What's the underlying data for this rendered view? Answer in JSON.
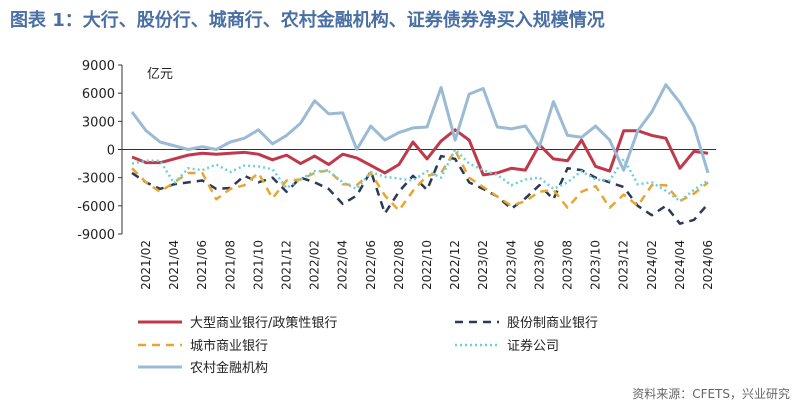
{
  "chart_data": {
    "type": "line",
    "title": "图表 1：大行、股份行、城商行、农村金融机构、证券债券净买入规模情况",
    "y_unit": "亿元",
    "source": "资料来源：CFETS，兴业研究",
    "categories": [
      null,
      "2021/02",
      null,
      "2021/04",
      null,
      "2021/06",
      null,
      "2021/08",
      null,
      "2021/10",
      null,
      "2021/12",
      null,
      "2022/02",
      null,
      "2022/04",
      null,
      "2022/06",
      null,
      "2022/08",
      null,
      "2022/10",
      null,
      "2022/12",
      null,
      "2023/02",
      null,
      "2023/04",
      null,
      "2023/06",
      null,
      "2023/08",
      null,
      "2023/10",
      null,
      "2023/12",
      null,
      "2024/02",
      null,
      "2024/04",
      null,
      "2024/06"
    ],
    "ylim": [
      -9000,
      9000
    ],
    "yticks": [
      9000,
      6000,
      3000,
      0,
      -3000,
      -6000,
      -9000
    ],
    "series": [
      {
        "name": "大型商业银行/政策性银行",
        "color": "#c0394a",
        "line_style": "solid",
        "values": [
          -800,
          -1400,
          -1400,
          -1000,
          -600,
          -400,
          -500,
          -400,
          -300,
          -500,
          -1100,
          -600,
          -1500,
          -700,
          -1600,
          -500,
          -900,
          -1700,
          -2500,
          -1600,
          800,
          -1000,
          900,
          2100,
          1000,
          -2700,
          -2500,
          -2000,
          -2200,
          500,
          -1000,
          -1200,
          1000,
          -1800,
          -2300,
          2000,
          2000,
          1500,
          1200,
          -2000,
          -200,
          -400
        ]
      },
      {
        "name": "股份制商业银行",
        "color": "#2b3a55",
        "line_style": "dashed",
        "values": [
          -2500,
          -3500,
          -4200,
          -3700,
          -3500,
          -3300,
          -4200,
          -4100,
          -2800,
          -3500,
          -3000,
          -4500,
          -3000,
          -3500,
          -4200,
          -5800,
          -4900,
          -2300,
          -6800,
          -4500,
          -2800,
          -4300,
          -700,
          -1000,
          -3500,
          -4200,
          -5000,
          -6300,
          -5200,
          -3800,
          -5300,
          -2000,
          -2200,
          -3000,
          -3500,
          -4000,
          -6000,
          -7000,
          -6000,
          -7900,
          -7500,
          -5800
        ]
      },
      {
        "name": "城市商业银行",
        "color": "#e8a531",
        "line_style": "dashed",
        "values": [
          -2000,
          -3500,
          -4500,
          -3500,
          -2500,
          -2500,
          -5300,
          -4200,
          -3800,
          -2500,
          -5200,
          -3300,
          -3200,
          -2500,
          -2200,
          -3700,
          -3800,
          -2500,
          -4900,
          -6500,
          -4400,
          -2800,
          -2500,
          -100,
          -3000,
          -4000,
          -5000,
          -6000,
          -5500,
          -4500,
          -4300,
          -6200,
          -4500,
          -3900,
          -6200,
          -4800,
          -6000,
          -3800,
          -3800,
          -5500,
          -4700,
          -3500
        ]
      },
      {
        "name": "证券公司",
        "color": "#6ad0e0",
        "line_style": "dotted",
        "values": [
          -1500,
          -1200,
          -1200,
          -3600,
          -2000,
          -2200,
          -1600,
          -2400,
          -1700,
          -1800,
          -2100,
          -4100,
          -3200,
          -2300,
          -2300,
          -3500,
          -4200,
          -2400,
          -2900,
          -3100,
          -3300,
          -2300,
          -3000,
          0,
          -1500,
          -2200,
          -2700,
          -3800,
          -3200,
          -3000,
          -4200,
          -3500,
          -2300,
          -3200,
          -3300,
          -1000,
          -3700,
          -3500,
          -4400,
          -5500,
          -4300,
          -3300
        ]
      },
      {
        "name": "农村金融机构",
        "color": "#9bbad4",
        "line_style": "solid",
        "values": [
          4000,
          2000,
          800,
          400,
          0,
          300,
          0,
          800,
          1200,
          2100,
          600,
          1500,
          2800,
          5200,
          3800,
          3900,
          0,
          2500,
          1000,
          1800,
          2300,
          2400,
          6600,
          1000,
          5900,
          6500,
          2400,
          2200,
          2500,
          300,
          5100,
          1500,
          1300,
          2500,
          1000,
          -2200,
          2000,
          4000,
          6900,
          5000,
          2500,
          -2500
        ]
      }
    ]
  }
}
